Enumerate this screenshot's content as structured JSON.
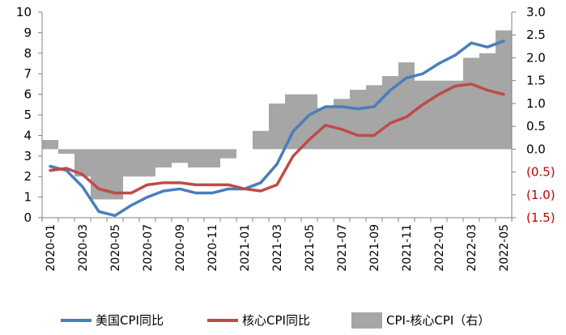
{
  "chart_data": {
    "type": "bar+line",
    "categories": [
      "2020-01",
      "2020-02",
      "2020-03",
      "2020-04",
      "2020-05",
      "2020-06",
      "2020-07",
      "2020-08",
      "2020-09",
      "2020-10",
      "2020-11",
      "2020-12",
      "2021-01",
      "2021-02",
      "2021-03",
      "2021-04",
      "2021-05",
      "2021-06",
      "2021-07",
      "2021-08",
      "2021-09",
      "2021-10",
      "2021-11",
      "2021-12",
      "2022-01",
      "2022-02",
      "2022-03",
      "2022-04",
      "2022-05"
    ],
    "x_tick_labels": [
      "2020-01",
      "2020-03",
      "2020-05",
      "2020-07",
      "2020-09",
      "2020-11",
      "2021-01",
      "2021-03",
      "2021-05",
      "2021-07",
      "2021-09",
      "2021-11",
      "2022-01",
      "2022-03",
      "2022-05"
    ],
    "left_axis": {
      "min": 0,
      "max": 10,
      "ticks": [
        "0",
        "1",
        "2",
        "3",
        "4",
        "5",
        "6",
        "7",
        "8",
        "9",
        "10"
      ]
    },
    "right_axis": {
      "min": -1.5,
      "max": 3.0,
      "ticks": [
        "(1.5)",
        "(1.0)",
        "(0.5)",
        "0.0",
        "0.5",
        "1.0",
        "1.5",
        "2.0",
        "2.5",
        "3.0"
      ]
    },
    "series": [
      {
        "name": "美国CPI同比",
        "type": "line",
        "axis": "left",
        "color": "#4a7ebb",
        "values": [
          2.5,
          2.3,
          1.5,
          0.3,
          0.1,
          0.6,
          1.0,
          1.3,
          1.4,
          1.2,
          1.2,
          1.4,
          1.4,
          1.7,
          2.6,
          4.2,
          5.0,
          5.4,
          5.4,
          5.3,
          5.4,
          6.2,
          6.8,
          7.0,
          7.5,
          7.9,
          8.5,
          8.3,
          8.6
        ]
      },
      {
        "name": "核心CPI同比",
        "type": "line",
        "axis": "left",
        "color": "#be4b48",
        "values": [
          2.3,
          2.4,
          2.1,
          1.4,
          1.2,
          1.2,
          1.6,
          1.7,
          1.7,
          1.6,
          1.6,
          1.6,
          1.4,
          1.3,
          1.6,
          3.0,
          3.8,
          4.5,
          4.3,
          4.0,
          4.0,
          4.6,
          4.9,
          5.5,
          6.0,
          6.4,
          6.5,
          6.2,
          6.0
        ]
      },
      {
        "name": "CPI-核心CPI（右）",
        "type": "bar",
        "axis": "right",
        "color": "#a6a6a6",
        "values": [
          0.2,
          -0.1,
          -0.6,
          -1.1,
          -1.1,
          -0.6,
          -0.6,
          -0.4,
          -0.3,
          -0.4,
          -0.4,
          -0.2,
          0.0,
          0.4,
          1.0,
          1.2,
          1.2,
          0.9,
          1.1,
          1.3,
          1.4,
          1.6,
          1.9,
          1.5,
          1.5,
          1.5,
          2.0,
          2.1,
          2.6
        ]
      }
    ],
    "grid": false,
    "legend_position": "bottom"
  },
  "legend": {
    "item1": "美国CPI同比",
    "item2": "核心CPI同比",
    "item3": "CPI-核心CPI（右）"
  }
}
